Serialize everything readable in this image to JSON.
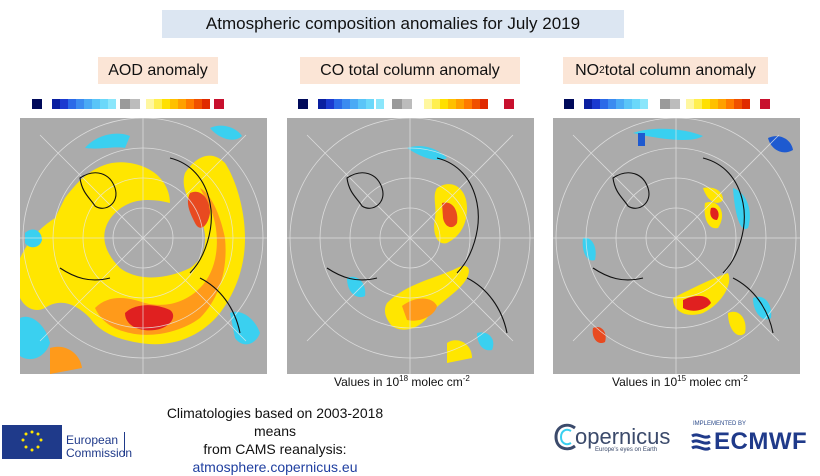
{
  "title": "Atmospheric composition anomalies for July 2019",
  "panels": [
    {
      "title": "AOD anomaly",
      "units": ""
    },
    {
      "title_main": "CO total column anomaly",
      "units_prefix": "Values in 10",
      "units_exp": "18",
      "units_mid": " molec cm",
      "units_exp2": "-2"
    },
    {
      "title_pre": "NO",
      "title_sub": "2",
      "title_post": " total column anomaly",
      "units_prefix": "Values in 10",
      "units_exp": "15",
      "units_mid": " molec cm",
      "units_exp2": "-2"
    }
  ],
  "footer": {
    "line1": "Climatologies based on 2003-2018 means",
    "line2": "from CAMS reanalysis:",
    "link": "atmosphere.copernicus.eu"
  },
  "logos": {
    "eu_line1": "European",
    "eu_line2": "Commission",
    "copernicus": "opernicus",
    "copernicus_tagline": "Europe's eyes on Earth",
    "implemented_by": "IMPLEMENTED BY",
    "ecmwf": "ECMWF"
  },
  "colors": {
    "land_gray": "#ababab",
    "positive_yellow": "#ffe600",
    "positive_orange": "#ff9a1a",
    "positive_red": "#e02020",
    "negative_cyan": "#3ad0f0",
    "negative_blue": "#1e5ad0",
    "eu_blue": "#1f3a8a"
  }
}
